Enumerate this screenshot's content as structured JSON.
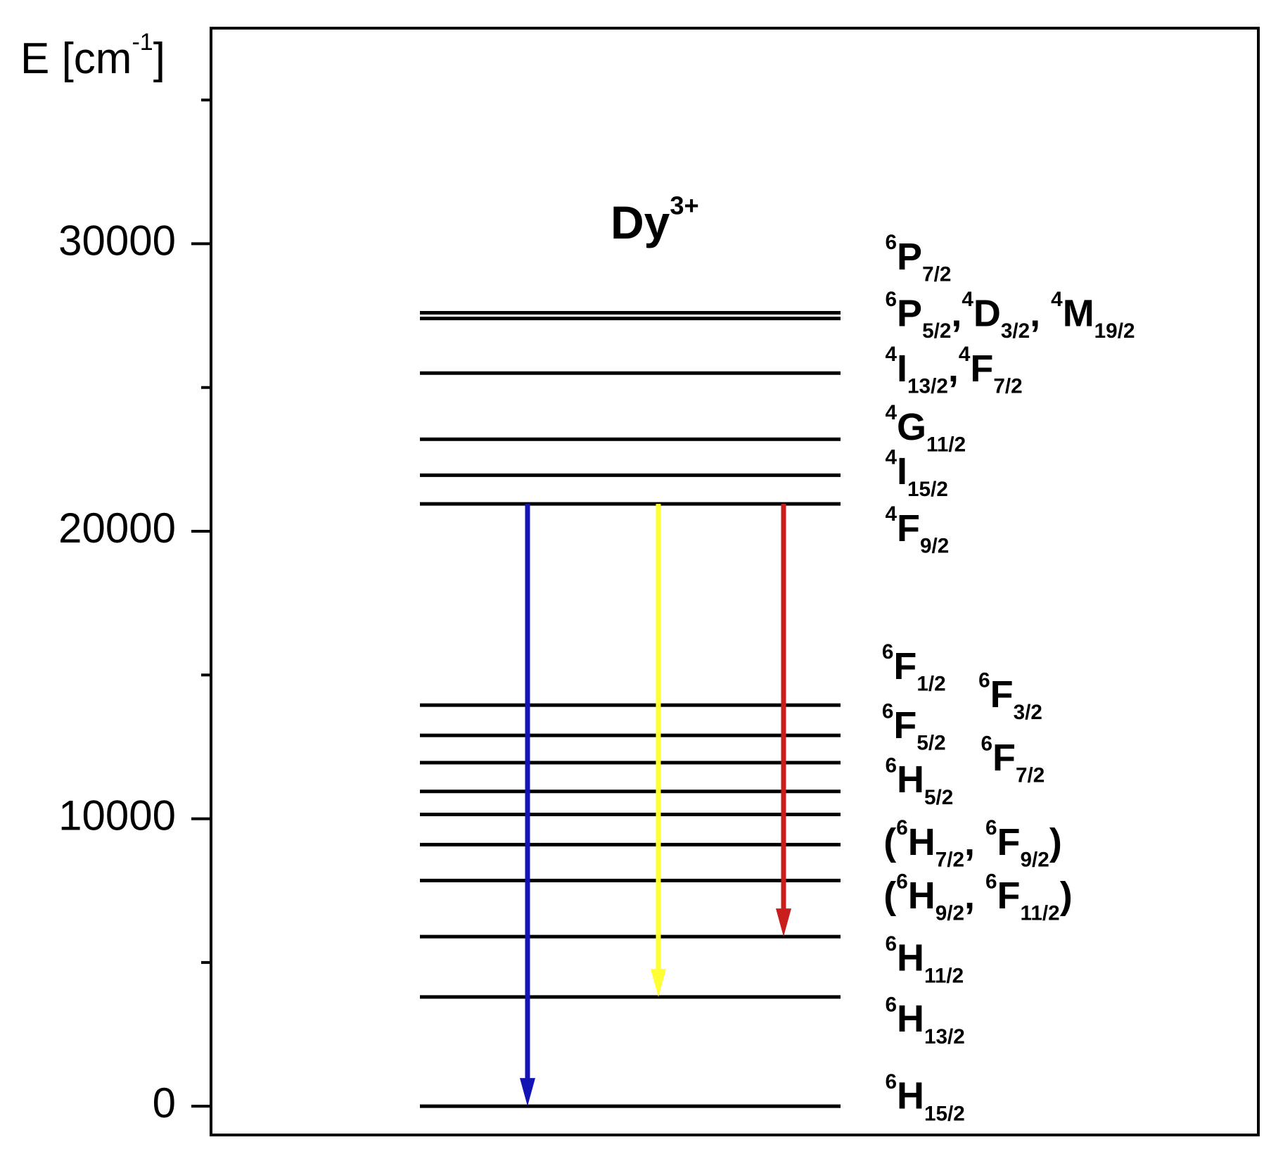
{
  "chart_data": {
    "type": "energy-levels",
    "title": [
      {
        "t": "Dy"
      },
      {
        "sup": "3+"
      }
    ],
    "y_label": [
      {
        "t": "E [cm"
      },
      {
        "sup": "-1"
      },
      {
        "t": "]"
      }
    ],
    "ylim": [
      -1000,
      37500
    ],
    "yticks": [
      0,
      10000,
      20000,
      30000
    ],
    "yminorticks": [
      5000,
      15000,
      25000,
      35000
    ],
    "levels": [
      0,
      3800,
      5900,
      7850,
      9100,
      10150,
      10950,
      11950,
      12900,
      13950,
      20950,
      21950,
      23200,
      25500,
      27400,
      27600
    ],
    "level_color": "#000000",
    "transitions": [
      {
        "from": 20950,
        "to": 0,
        "color": "#1414b4"
      },
      {
        "from": 20950,
        "to": 3800,
        "color": "#ffff33"
      },
      {
        "from": 20950,
        "to": 5900,
        "color": "#c81e1e"
      }
    ],
    "labels": [
      [
        {
          "sup": "6"
        },
        {
          "t": "P"
        },
        {
          "sub": "7/2"
        }
      ],
      [
        {
          "sup": "6"
        },
        {
          "t": "P"
        },
        {
          "sub": "5/2"
        },
        {
          "t": ","
        },
        {
          "sup": "4"
        },
        {
          "t": "D"
        },
        {
          "sub": "3/2"
        },
        {
          "t": ", "
        },
        {
          "sup": "4"
        },
        {
          "t": "M"
        },
        {
          "sub": "19/2"
        }
      ],
      [
        {
          "sup": "4"
        },
        {
          "t": "I"
        },
        {
          "sub": "13/2"
        },
        {
          "t": ","
        },
        {
          "sup": "4"
        },
        {
          "t": "F"
        },
        {
          "sub": "7/2"
        }
      ],
      [
        {
          "sup": "4"
        },
        {
          "t": "G"
        },
        {
          "sub": "11/2"
        }
      ],
      [
        {
          "sup": "4"
        },
        {
          "t": "I"
        },
        {
          "sub": "15/2"
        }
      ],
      [
        {
          "sup": "4"
        },
        {
          "t": "F"
        },
        {
          "sub": "9/2"
        }
      ],
      [
        {
          "sup": "6"
        },
        {
          "t": "F"
        },
        {
          "sub": "1/2"
        }
      ],
      [
        {
          "sup": "6"
        },
        {
          "t": "F"
        },
        {
          "sub": "3/2"
        }
      ],
      [
        {
          "sup": "6"
        },
        {
          "t": "F"
        },
        {
          "sub": "5/2"
        }
      ],
      [
        {
          "sup": "6"
        },
        {
          "t": "F"
        },
        {
          "sub": "7/2"
        }
      ],
      [
        {
          "sup": "6"
        },
        {
          "t": "H"
        },
        {
          "sub": "5/2"
        }
      ],
      [
        {
          "t": "("
        },
        {
          "sup": "6"
        },
        {
          "t": "H"
        },
        {
          "sub": "7/2"
        },
        {
          "t": ", "
        },
        {
          "sup": "6"
        },
        {
          "t": "F"
        },
        {
          "sub": "9/2"
        },
        {
          "t": ")"
        }
      ],
      [
        {
          "t": "("
        },
        {
          "sup": "6"
        },
        {
          "t": "H"
        },
        {
          "sub": "9/2"
        },
        {
          "t": ", "
        },
        {
          "sup": "6"
        },
        {
          "t": "F"
        },
        {
          "sub": "11/2"
        },
        {
          "t": ")"
        }
      ],
      [
        {
          "sup": "6"
        },
        {
          "t": "H"
        },
        {
          "sub": "11/2"
        }
      ],
      [
        {
          "sup": "6"
        },
        {
          "t": "H"
        },
        {
          "sub": "13/2"
        }
      ],
      [
        {
          "sup": "6"
        },
        {
          "t": "H"
        },
        {
          "sub": "15/2"
        }
      ]
    ]
  }
}
